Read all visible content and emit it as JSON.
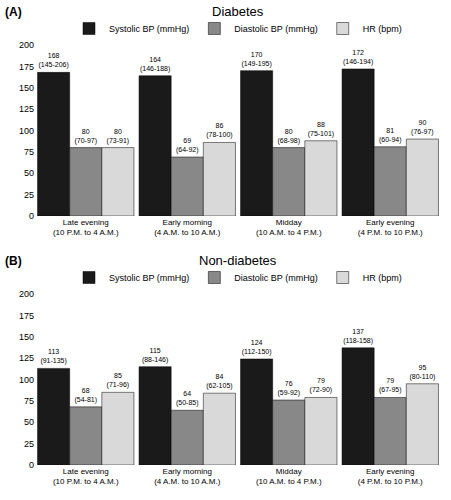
{
  "chart_data": [
    {
      "type": "bar",
      "title": "Diabetes",
      "annotations": [
        "(A)"
      ],
      "categories": [
        "Late evening\n(10 P.M. to 4 A.M.)",
        "Early morning\n(4 A.M. to 10 A.M.)",
        "Midday\n(10 A.M. to 4 P.M.)",
        "Early evening\n(4 P.M. to 10 P.M.)"
      ],
      "series": [
        {
          "name": "Systolic BP (mmHg)",
          "color": "#1a1a1a",
          "values": [
            168,
            164,
            170,
            172
          ],
          "value_labels": [
            "168\n(145-206)",
            "164\n(146-188)",
            "170\n(149-195)",
            "172\n(146-194)"
          ]
        },
        {
          "name": "Diastolic BP (mmHg)",
          "color": "#888888",
          "values": [
            80,
            69,
            80,
            81
          ],
          "value_labels": [
            "80\n(70-97)",
            "69\n(64-92)",
            "80\n(68-98)",
            "81\n(60-94)"
          ]
        },
        {
          "name": "HR (bpm)",
          "color": "#d9d9d9",
          "values": [
            80,
            86,
            88,
            90
          ],
          "value_labels": [
            "80\n(73-91)",
            "86\n(78-100)",
            "88\n(75-101)",
            "90\n(76-97)"
          ]
        }
      ],
      "ylim": [
        0,
        200
      ],
      "yticks": [
        0,
        25,
        50,
        75,
        100,
        125,
        150,
        175,
        200
      ],
      "grid": false,
      "legend": "top",
      "data_labels": true
    },
    {
      "type": "bar",
      "title": "Non-diabetes",
      "annotations": [
        "(B)"
      ],
      "categories": [
        "Late evening\n(10 P.M. to 4 A.M.)",
        "Early morning\n(4 A.M. to 10 A.M.)",
        "Midday\n(10 A.M. to 4 P.M.)",
        "Early evening\n(4 P.M. to 10 P.M.)"
      ],
      "series": [
        {
          "name": "Systolic BP (mmHg)",
          "color": "#1a1a1a",
          "values": [
            113,
            115,
            124,
            137
          ],
          "value_labels": [
            "113\n(91-135)",
            "115\n(88-146)",
            "124\n(112-150)",
            "137\n(118-158)"
          ]
        },
        {
          "name": "Diastolic BP (mmHg)",
          "color": "#888888",
          "values": [
            68,
            64,
            76,
            79
          ],
          "value_labels": [
            "68\n(54-81)",
            "64\n(50-85)",
            "76\n(59-92)",
            "79\n(67-95)"
          ]
        },
        {
          "name": "HR (bpm)",
          "color": "#d9d9d9",
          "values": [
            85,
            84,
            79,
            95
          ],
          "value_labels": [
            "85\n(71-96)",
            "84\n(62-105)",
            "79\n(72-90)",
            "95\n(80-110)"
          ]
        }
      ],
      "ylim": [
        0,
        200
      ],
      "yticks": [
        0,
        25,
        50,
        75,
        100,
        125,
        150,
        175,
        200
      ],
      "grid": false,
      "legend": "top",
      "data_labels": true
    }
  ]
}
